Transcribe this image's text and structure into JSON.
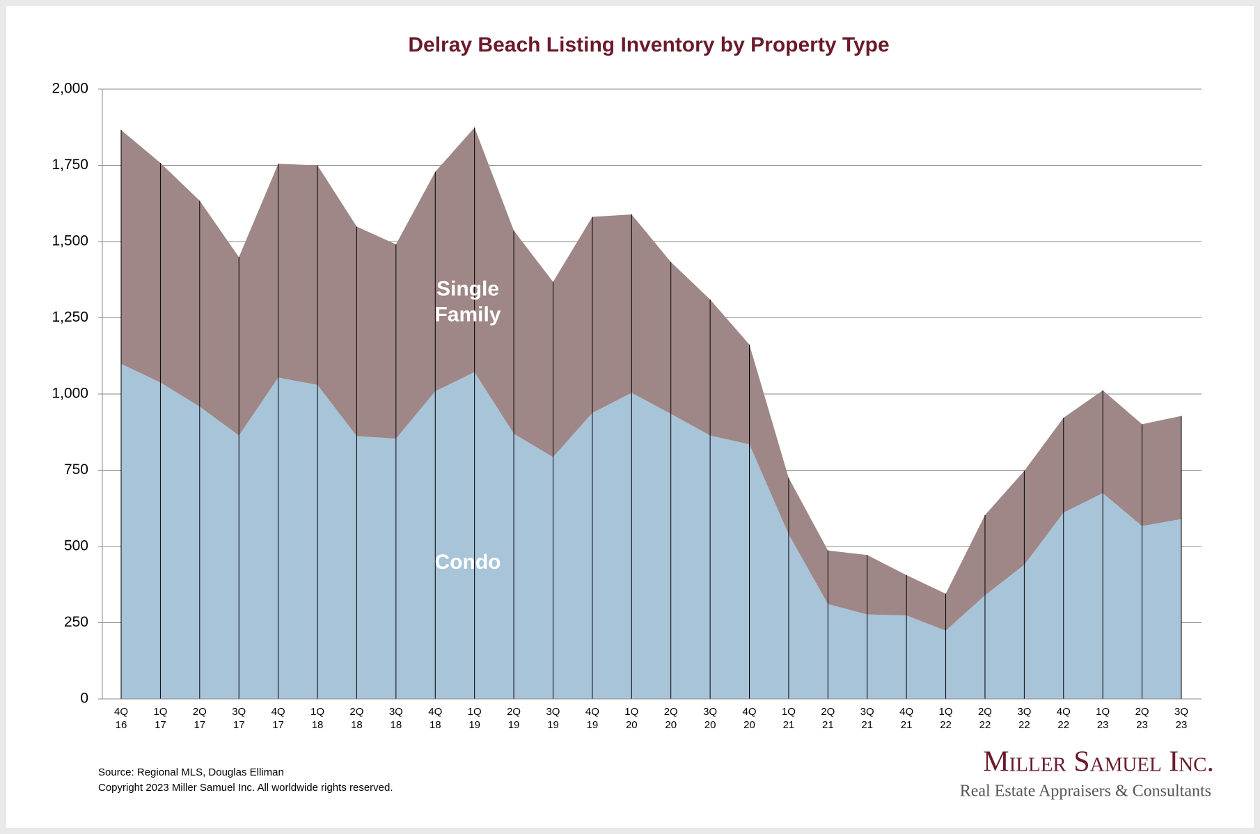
{
  "chart_data": {
    "type": "stacked-area",
    "title": "Delray Beach Listing Inventory by Property Type",
    "categories": [
      "4Q 16",
      "1Q 17",
      "2Q 17",
      "3Q 17",
      "4Q 17",
      "1Q 18",
      "2Q 18",
      "3Q 18",
      "4Q 18",
      "1Q 19",
      "2Q 19",
      "3Q 19",
      "4Q 19",
      "1Q 20",
      "2Q 20",
      "3Q 20",
      "4Q 20",
      "1Q 21",
      "2Q 21",
      "3Q 21",
      "4Q 21",
      "1Q 22",
      "2Q 22",
      "3Q 22",
      "4Q 22",
      "1Q 23",
      "2Q 23",
      "3Q 23"
    ],
    "series": [
      {
        "name": "Condo",
        "color": "#a8c4d9",
        "values": [
          1099,
          1038,
          959,
          864,
          1054,
          1030,
          862,
          854,
          1009,
          1072,
          870,
          793,
          938,
          1004,
          935,
          864,
          835,
          540,
          311,
          277,
          274,
          224,
          340,
          440,
          611,
          675,
          567,
          590
        ]
      },
      {
        "name": "Single Family",
        "color": "#9e8786",
        "values": [
          767,
          720,
          675,
          585,
          701,
          720,
          687,
          637,
          720,
          802,
          666,
          575,
          643,
          585,
          498,
          446,
          327,
          185,
          176,
          195,
          132,
          121,
          263,
          308,
          311,
          337,
          334,
          338
        ]
      }
    ],
    "ylim": [
      0,
      2000
    ],
    "yticks": [
      0,
      250,
      500,
      750,
      {
        "value": 1000,
        "label": "1,000"
      },
      {
        "value": 1250,
        "label": "1,250"
      },
      {
        "value": 1500,
        "label": "1,500"
      },
      {
        "value": 1750,
        "label": "1,750"
      },
      {
        "value": 2000,
        "label": "2,000"
      }
    ],
    "grid": true,
    "source": "Source: Regional MLS, Douglas Elliman",
    "copyright": "Copyright 2023 Miller Samuel Inc.  All worldwide rights reserved.",
    "logo": {
      "name": "Miller Samuel Inc.",
      "tagline": "Real Estate Appraisers & Consultants"
    }
  }
}
